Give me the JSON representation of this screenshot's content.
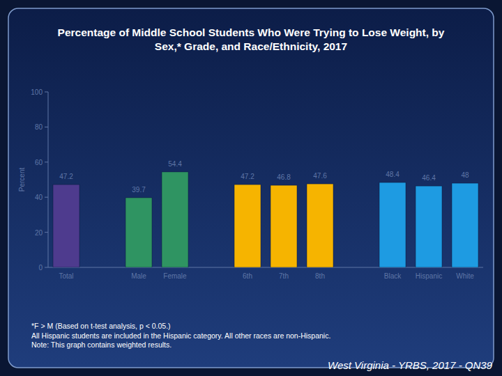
{
  "chart_data": {
    "type": "bar",
    "title": "Percentage of Middle School Students Who Were Trying to Lose Weight, by Sex,* Grade, and Race/Ethnicity, 2017",
    "y_label": "Percent",
    "categories": [
      "Total",
      null,
      "Male",
      "Female",
      null,
      "6th",
      "7th",
      "8th",
      null,
      "Black",
      "Hispanic",
      "White"
    ],
    "values": [
      47.2,
      null,
      39.7,
      54.4,
      null,
      47.2,
      46.8,
      47.6,
      null,
      48.4,
      46.4,
      48.0
    ],
    "colors": [
      "#4e3b8e",
      null,
      "#2f9462",
      "#2f9462",
      null,
      "#f6b400",
      "#f6b400",
      "#f6b400",
      null,
      "#1e9be2",
      "#1e9be2",
      "#1e9be2"
    ],
    "ylim": [
      0,
      100
    ],
    "yticks": [
      0,
      20,
      40,
      60,
      80,
      100
    ],
    "grid": false,
    "data_labels": true,
    "notes": [
      "*F > M (Based on t-test analysis, p < 0.05.)",
      "All Hispanic students are included in the Hispanic category.  All other races are non-Hispanic.",
      "Note: This graph contains weighted results."
    ],
    "source": "West Virginia - YRBS, 2017 - QN39"
  }
}
